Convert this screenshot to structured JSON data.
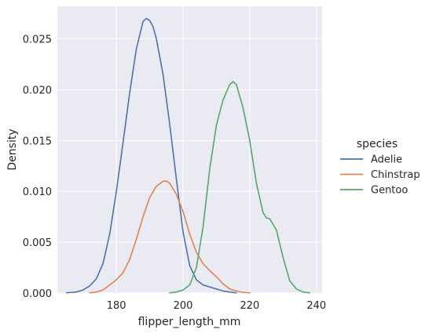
{
  "chart_data": {
    "type": "line",
    "xlabel": "flipper_length_mm",
    "ylabel": "Density",
    "xlim": [
      162.3,
      241.7
    ],
    "ylim": [
      0,
      0.0282
    ],
    "xticks": [
      180,
      200,
      220,
      240
    ],
    "yticks": [
      "0.000",
      "0.005",
      "0.010",
      "0.015",
      "0.020",
      "0.025"
    ],
    "grid": true,
    "legend": {
      "title": "species",
      "placement": "right"
    },
    "series": [
      {
        "name": "Adelie",
        "color": "#4c72b0",
        "x": [
          165,
          168,
          170,
          172,
          174,
          176,
          178,
          180,
          182,
          184,
          186,
          188,
          189,
          190,
          191,
          192,
          194,
          196,
          198,
          200,
          202,
          204,
          206,
          208,
          210,
          212,
          214,
          216
        ],
        "y": [
          2e-05,
          0.0001,
          0.0003,
          0.0007,
          0.0014,
          0.0029,
          0.0058,
          0.01,
          0.0148,
          0.0197,
          0.024,
          0.0267,
          0.027,
          0.0268,
          0.0262,
          0.025,
          0.0215,
          0.0166,
          0.0112,
          0.006,
          0.0027,
          0.0013,
          0.0008,
          0.0006,
          0.0004,
          0.0002,
          0.0001,
          2e-05
        ]
      },
      {
        "name": "Chinstrap",
        "color": "#dd8452",
        "x": [
          172,
          174,
          176,
          178,
          180,
          182,
          184,
          186,
          188,
          190,
          192,
          194,
          195,
          196,
          198,
          200,
          202,
          204,
          206,
          208,
          210,
          212,
          214,
          216,
          218,
          220
        ],
        "y": [
          2e-05,
          0.0001,
          0.0003,
          0.0008,
          0.0013,
          0.002,
          0.0033,
          0.0053,
          0.0075,
          0.0094,
          0.0105,
          0.011,
          0.011,
          0.0108,
          0.0097,
          0.008,
          0.0058,
          0.004,
          0.0029,
          0.0022,
          0.0016,
          0.0009,
          0.0004,
          0.0002,
          6e-05,
          2e-05
        ]
      },
      {
        "name": "Gentoo",
        "color": "#55a868",
        "x": [
          196,
          198,
          200,
          202,
          204,
          206,
          208,
          210,
          212,
          214,
          215,
          216,
          218,
          220,
          222,
          224,
          225,
          226,
          228,
          230,
          232,
          234,
          236,
          238
        ],
        "y": [
          2e-05,
          0.0001,
          0.0003,
          0.0008,
          0.0025,
          0.0065,
          0.0122,
          0.0165,
          0.019,
          0.0205,
          0.0208,
          0.0205,
          0.0182,
          0.015,
          0.0108,
          0.0079,
          0.0074,
          0.0073,
          0.0062,
          0.0035,
          0.0012,
          0.0004,
          0.0001,
          2e-05
        ]
      }
    ]
  }
}
